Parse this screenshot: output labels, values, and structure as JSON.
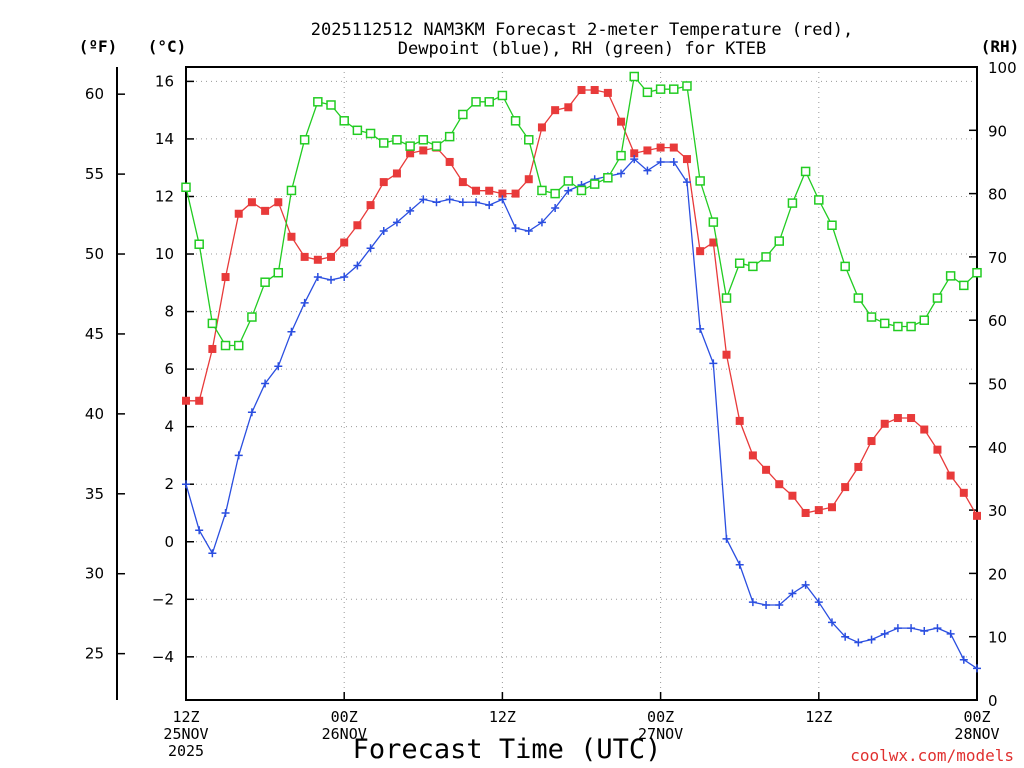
{
  "title_lines": [
    "2025112512 NAM3KM Forecast 2-meter Temperature (red),",
    "Dewpoint (blue), RH (green) for KTEB"
  ],
  "credit": "coolwx.com/models",
  "colors": {
    "temperature": "#e83a3a",
    "dewpoint": "#2a4ee0",
    "rh": "#22cc22",
    "axis": "#000000",
    "grid": "#9a9a9a"
  },
  "chart_data": {
    "type": "line",
    "title": "2025112512 NAM3KM Forecast 2-meter Temperature (red), Dewpoint (blue), RH (green) for KTEB",
    "xlabel": "Forecast Time (UTC)",
    "x_unit": "forecast hour",
    "x_range": [
      0,
      60
    ],
    "x_ticks": [
      {
        "hour": 0,
        "lines": [
          "12Z",
          "25NOV",
          "2025"
        ]
      },
      {
        "hour": 12,
        "lines": [
          "00Z",
          "26NOV"
        ]
      },
      {
        "hour": 24,
        "lines": [
          "12Z"
        ]
      },
      {
        "hour": 36,
        "lines": [
          "00Z",
          "27NOV"
        ]
      },
      {
        "hour": 48,
        "lines": [
          "12Z"
        ]
      },
      {
        "hour": 60,
        "lines": [
          "00Z",
          "28NOV"
        ]
      }
    ],
    "y_left_c": {
      "unit_label": "(°C)",
      "range": [
        -5.5,
        16.5
      ],
      "ticks": [
        16,
        14,
        12,
        10,
        8,
        6,
        4,
        2,
        0,
        -2,
        -4
      ],
      "tick_labels": [
        "16",
        "14",
        "12",
        "10",
        "8",
        "6",
        "4",
        "2",
        "0",
        "−2",
        "−4"
      ]
    },
    "y_left_f": {
      "unit_label": "(ºF)",
      "ticks": [
        60,
        55,
        50,
        45,
        40,
        35,
        30,
        25
      ],
      "tick_labels": [
        "60",
        "55",
        "50",
        "45",
        "40",
        "35",
        "30",
        "25"
      ]
    },
    "y_right_rh": {
      "unit_label": "(RH)",
      "range": [
        0,
        100
      ],
      "ticks": [
        100,
        90,
        80,
        70,
        60,
        50,
        40,
        30,
        20,
        10,
        0
      ],
      "tick_labels": [
        "100",
        "90",
        "80",
        "70",
        "60",
        "50",
        "40",
        "30",
        "20",
        "10",
        "0"
      ]
    },
    "series": [
      {
        "name": "2-meter Temperature",
        "color_key": "temperature",
        "unit": "°C",
        "marker": "filled-square",
        "x": [
          0,
          1,
          2,
          3,
          4,
          5,
          6,
          7,
          8,
          9,
          10,
          11,
          12,
          13,
          14,
          15,
          16,
          17,
          18,
          19,
          20,
          21,
          22,
          23,
          24,
          25,
          26,
          27,
          28,
          29,
          30,
          31,
          32,
          33,
          34,
          35,
          36,
          37,
          38,
          39,
          40,
          41,
          42,
          43,
          44,
          45,
          46,
          47,
          48,
          49,
          50,
          51,
          52,
          53,
          54,
          55,
          56,
          57,
          58,
          59,
          60
        ],
        "values": [
          4.9,
          4.9,
          6.7,
          9.2,
          11.4,
          11.8,
          11.5,
          11.8,
          10.6,
          9.9,
          9.8,
          9.9,
          10.4,
          11.0,
          11.7,
          12.5,
          12.8,
          13.5,
          13.6,
          13.7,
          13.2,
          12.5,
          12.2,
          12.2,
          12.1,
          12.1,
          12.6,
          14.4,
          15.0,
          15.1,
          15.7,
          15.7,
          15.6,
          14.6,
          13.5,
          13.6,
          13.7,
          13.7,
          13.3,
          10.1,
          10.4,
          6.5,
          4.2,
          3.0,
          2.5,
          2.0,
          1.6,
          1.0,
          1.1,
          1.2,
          1.9,
          2.6,
          3.5,
          4.1,
          4.3,
          4.3,
          3.9,
          3.2,
          2.3,
          1.7,
          0.9
        ]
      },
      {
        "name": "Dewpoint",
        "color_key": "dewpoint",
        "unit": "°C",
        "marker": "plus",
        "x": [
          0,
          1,
          2,
          3,
          4,
          5,
          6,
          7,
          8,
          9,
          10,
          11,
          12,
          13,
          14,
          15,
          16,
          17,
          18,
          19,
          20,
          21,
          22,
          23,
          24,
          25,
          26,
          27,
          28,
          29,
          30,
          31,
          32,
          33,
          34,
          35,
          36,
          37,
          38,
          39,
          40,
          41,
          42,
          43,
          44,
          45,
          46,
          47,
          48,
          49,
          50,
          51,
          52,
          53,
          54,
          55,
          56,
          57,
          58,
          59,
          60
        ],
        "values": [
          2.0,
          0.4,
          -0.4,
          1.0,
          3.0,
          4.5,
          5.5,
          6.1,
          7.3,
          8.3,
          9.2,
          9.1,
          9.2,
          9.6,
          10.2,
          10.8,
          11.1,
          11.5,
          11.9,
          11.8,
          11.9,
          11.8,
          11.8,
          11.7,
          11.9,
          10.9,
          10.8,
          11.1,
          11.6,
          12.2,
          12.4,
          12.6,
          12.7,
          12.8,
          13.3,
          12.9,
          13.2,
          13.2,
          12.5,
          7.4,
          6.2,
          0.1,
          -0.8,
          -2.1,
          -2.2,
          -2.2,
          -1.8,
          -1.5,
          -2.1,
          -2.8,
          -3.3,
          -3.5,
          -3.4,
          -3.2,
          -3.0,
          -3.0,
          -3.1,
          -3.0,
          -3.2,
          -4.1,
          -4.4
        ]
      },
      {
        "name": "Relative Humidity",
        "color_key": "rh",
        "unit": "%",
        "marker": "open-square",
        "x": [
          0,
          1,
          2,
          3,
          4,
          5,
          6,
          7,
          8,
          9,
          10,
          11,
          12,
          13,
          14,
          15,
          16,
          17,
          18,
          19,
          20,
          21,
          22,
          23,
          24,
          25,
          26,
          27,
          28,
          29,
          30,
          31,
          32,
          33,
          34,
          35,
          36,
          37,
          38,
          39,
          40,
          41,
          42,
          43,
          44,
          45,
          46,
          47,
          48,
          49,
          50,
          51,
          52,
          53,
          54,
          55,
          56,
          57,
          58,
          59,
          60
        ],
        "values": [
          81.0,
          72.0,
          59.5,
          56.0,
          56.0,
          60.5,
          66.0,
          67.5,
          80.5,
          88.5,
          94.5,
          94.0,
          91.5,
          90.0,
          89.5,
          88.0,
          88.5,
          87.5,
          88.5,
          87.5,
          89.0,
          92.5,
          94.5,
          94.5,
          95.5,
          91.5,
          88.5,
          80.5,
          80.0,
          82.0,
          80.5,
          81.5,
          82.5,
          86.0,
          98.5,
          96.0,
          96.5,
          96.5,
          97.0,
          82.0,
          75.5,
          63.5,
          69.0,
          68.5,
          70.0,
          72.5,
          78.5,
          83.5,
          79.0,
          75.0,
          68.5,
          63.5,
          60.5,
          59.5,
          59.0,
          59.0,
          60.0,
          63.5,
          67.0,
          65.5,
          67.5
        ]
      }
    ]
  }
}
